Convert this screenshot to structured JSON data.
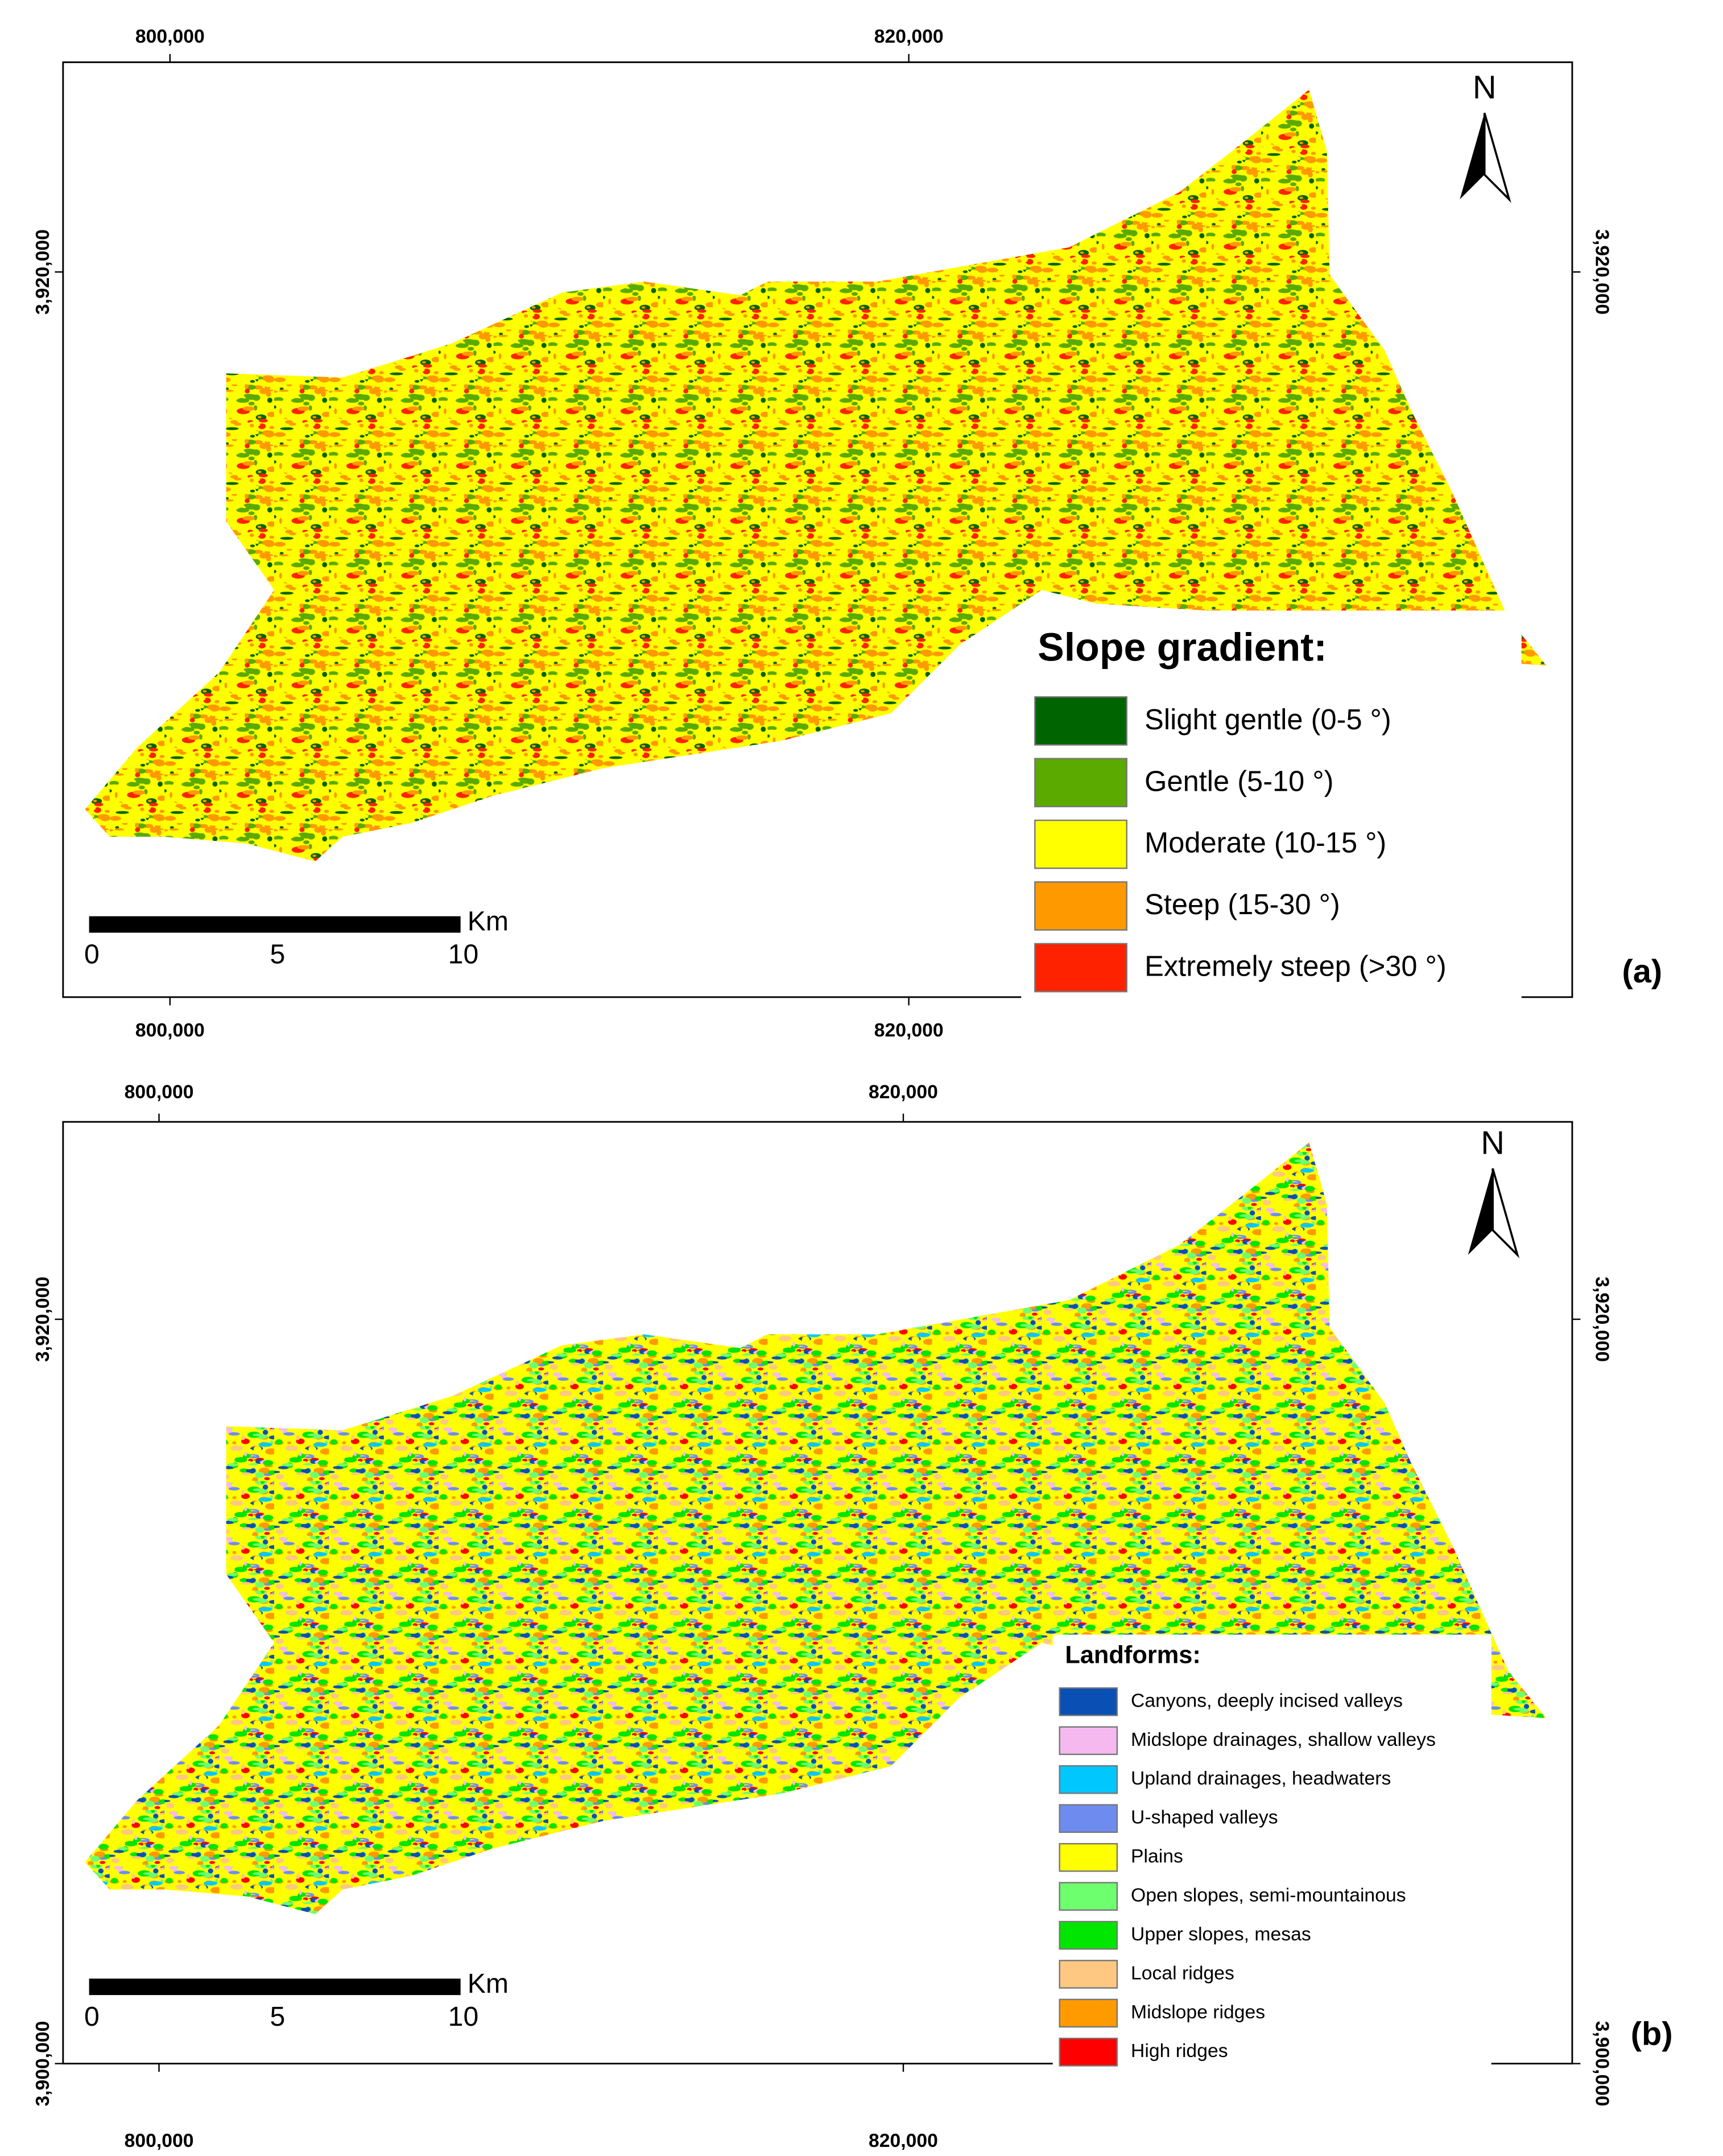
{
  "panels": [
    {
      "label": "(a)",
      "north": "N",
      "x_ticks": [
        {
          "value": 800000,
          "label": "800,000"
        },
        {
          "value": 820000,
          "label": "820,000"
        }
      ],
      "y_ticks": [
        {
          "value": 3920000,
          "label": "3,920,000"
        }
      ],
      "scale_bar": {
        "ticks": [
          0,
          5,
          10
        ],
        "unit": "Km"
      },
      "legend": {
        "title": "Slope gradient:",
        "items": [
          {
            "label": "Slight gentle (0-5 °)",
            "color": "#006400"
          },
          {
            "label": "Gentle (5-10 °)",
            "color": "#5aaa00"
          },
          {
            "label": "Moderate (10-15 °)",
            "color": "#ffff00"
          },
          {
            "label": "Steep (15-30 °)",
            "color": "#ff9900"
          },
          {
            "label": "Extremely steep (>30 °)",
            "color": "#ff2200"
          }
        ]
      }
    },
    {
      "label": "(b)",
      "north": "N",
      "x_ticks": [
        {
          "value": 800000,
          "label": "800,000"
        },
        {
          "value": 820000,
          "label": "820,000"
        }
      ],
      "y_ticks": [
        {
          "value": 3920000,
          "label": "3,920,000"
        },
        {
          "value": 3900000,
          "label": "3,900,000"
        }
      ],
      "scale_bar": {
        "ticks": [
          0,
          5,
          10
        ],
        "unit": "Km"
      },
      "legend": {
        "title": "Landforms:",
        "items": [
          {
            "label": "Canyons, deeply incised valleys",
            "color": "#0a50b4"
          },
          {
            "label": "Midslope drainages, shallow valleys",
            "color": "#f5b9f0"
          },
          {
            "label": "Upland drainages, headwaters",
            "color": "#00c8ff"
          },
          {
            "label": "U-shaped valleys",
            "color": "#6e8cf0"
          },
          {
            "label": "Plains",
            "color": "#ffff00"
          },
          {
            "label": "Open slopes, semi-mountainous",
            "color": "#6eff6e"
          },
          {
            "label": "Upper slopes, mesas",
            "color": "#00e600"
          },
          {
            "label": "Local ridges",
            "color": "#ffc882"
          },
          {
            "label": "Midslope ridges",
            "color": "#ff9a00"
          },
          {
            "label": "High ridges",
            "color": "#ff0000"
          }
        ]
      }
    }
  ]
}
